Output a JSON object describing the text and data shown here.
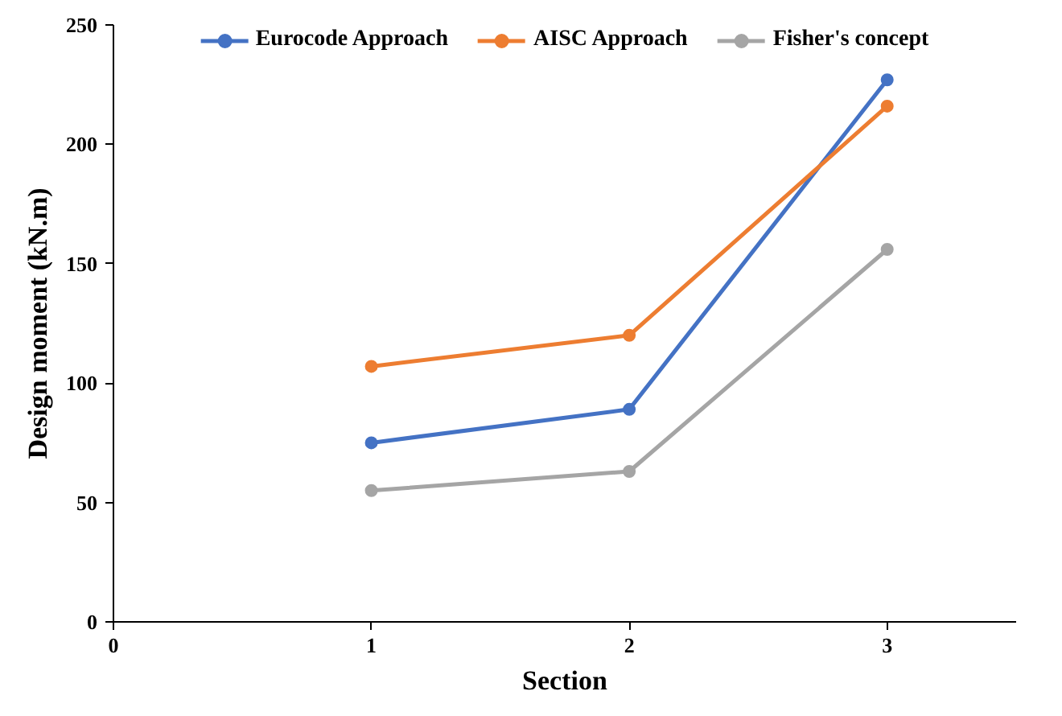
{
  "chart_data": {
    "type": "line",
    "xlabel": "Section",
    "ylabel": "Design moment (kN.m)",
    "x": [
      1,
      2,
      3
    ],
    "series": [
      {
        "name": "Eurocode Approach",
        "color": "#4472c4",
        "values": [
          75,
          89,
          227
        ]
      },
      {
        "name": "AISC Approach",
        "color": "#ed7d31",
        "values": [
          107,
          120,
          216
        ]
      },
      {
        "name": "Fisher's concept",
        "color": "#a5a5a5",
        "values": [
          55,
          63,
          156
        ]
      }
    ],
    "xlim": [
      0,
      3.5
    ],
    "xticks": [
      0,
      1,
      2,
      3
    ],
    "ylim": [
      0,
      250
    ],
    "yticks": [
      0,
      50,
      100,
      150,
      200,
      250
    ],
    "grid": false,
    "legend": "top",
    "marker": "circle",
    "line_style": "solid"
  }
}
